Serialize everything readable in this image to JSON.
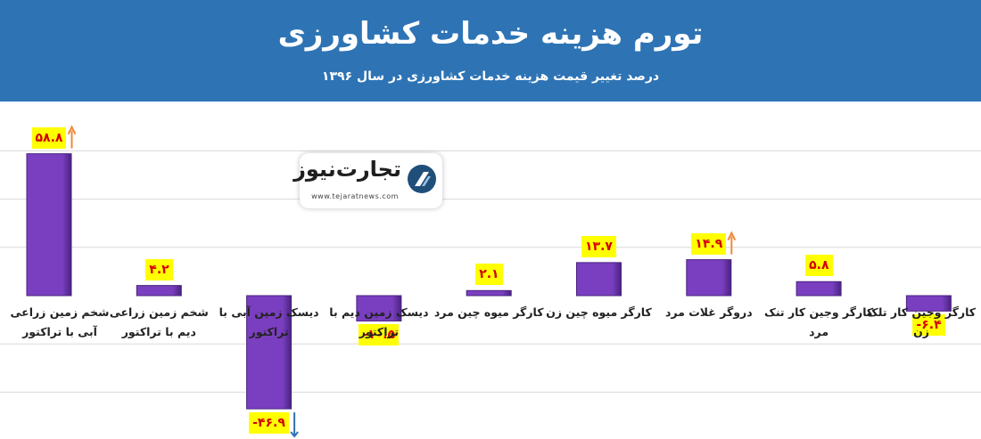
{
  "header": {
    "title": "تورم هزینه خدمات کشاورزی",
    "subtitle": "درصد تغییر قیمت هزینه خدمات کشاورزی در سال ۱۳۹۶"
  },
  "logo": {
    "name": "تجارت‌نیوز",
    "url": "www.tejaratnews.com"
  },
  "colors": {
    "header": "#2e74b5",
    "bar": "#7a3fc0",
    "bar_dark": "#4a2380",
    "label_bg": "#ffff00",
    "label_text": "#d40000",
    "arrow": "#ef8a3a"
  },
  "chart_data": {
    "type": "bar",
    "categories": [
      "شخم زمین زراعی آبی با تراکتور",
      "شخم زمین زراعی دیم با تراکتور",
      "دیسک زمین آبی با تراکتور",
      "دیسک زمین دیم با تراکتور",
      "کارگر میوه چین مرد",
      "کارگر میوه چین زن",
      "دروگر غلات مرد",
      "کارگر وجین کار تنک مرد",
      "کارگر وجین کار تلک زن"
    ],
    "values": [
      58.8,
      4.2,
      -46.9,
      -10.5,
      2.1,
      13.7,
      14.9,
      5.8,
      -6.4
    ],
    "value_labels": [
      "۵۸.۸",
      "۴.۲",
      "-۴۶.۹",
      "-۱۰.۵",
      "۲.۱",
      "۱۳.۷",
      "۱۴.۹",
      "۵.۸",
      "-۶.۴"
    ],
    "ylim": [
      -50,
      60
    ],
    "grid": true,
    "annotations": [
      {
        "category_index": 0,
        "arrow": "up"
      },
      {
        "category_index": 2,
        "arrow": "down"
      },
      {
        "category_index": 6,
        "arrow": "up"
      }
    ]
  }
}
